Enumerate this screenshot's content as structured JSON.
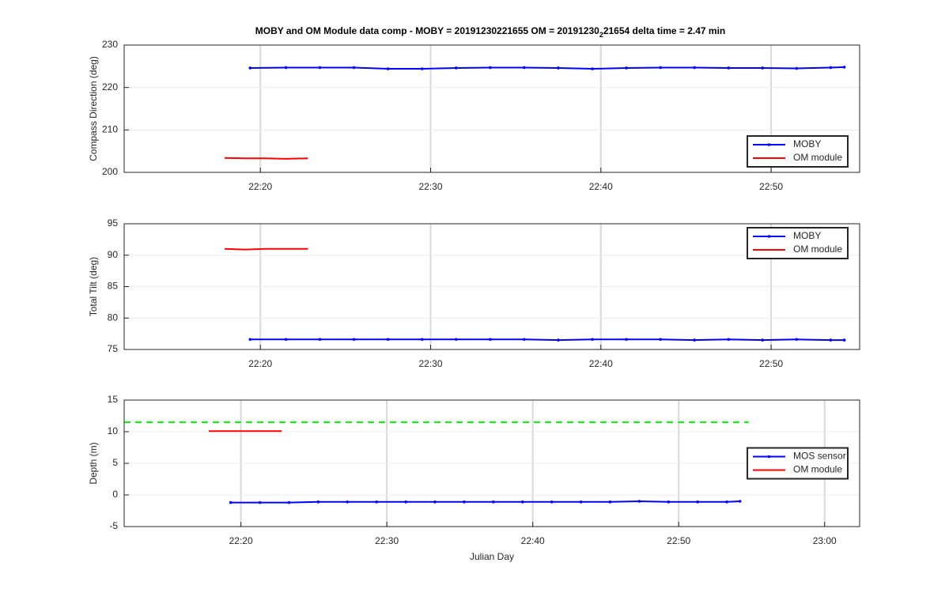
{
  "chart_data": [
    {
      "type": "line",
      "title": [
        "MOBY and OM Module data comp - MOBY = 20191230221655 OM = 20191230",
        "2",
        "21654 delta time = 2.47 min"
      ],
      "ylabel": "Compass Direction (deg)",
      "xlim": [
        1332,
        1375.2
      ],
      "xticks": [
        {
          "value": 1340,
          "label": "22:20"
        },
        {
          "value": 1350,
          "label": "22:30"
        },
        {
          "value": 1360,
          "label": "22:40"
        },
        {
          "value": 1370,
          "label": "22:50"
        }
      ],
      "ylim": [
        200,
        230
      ],
      "yticks": [
        200,
        210,
        220,
        230
      ],
      "grid": true,
      "legend": "lower right",
      "series": [
        {
          "name": "MOBY",
          "color": "#0000ff",
          "marker": true,
          "x": [
            1339.4,
            1341.5,
            1343.5,
            1345.5,
            1347.5,
            1349.5,
            1351.5,
            1353.5,
            1355.5,
            1357.5,
            1359.5,
            1361.5,
            1363.5,
            1365.5,
            1367.5,
            1369.5,
            1371.5,
            1373.5,
            1374.3
          ],
          "values": [
            224.6,
            224.7,
            224.7,
            224.7,
            224.4,
            224.4,
            224.6,
            224.7,
            224.7,
            224.6,
            224.4,
            224.6,
            224.7,
            224.7,
            224.6,
            224.6,
            224.5,
            224.7,
            224.8
          ]
        },
        {
          "name": "OM module",
          "color": "#ff0000",
          "marker": false,
          "x": [
            1337.9,
            1339.1,
            1340.3,
            1341.5,
            1342.8
          ],
          "values": [
            203.4,
            203.3,
            203.3,
            203.2,
            203.3
          ]
        }
      ]
    },
    {
      "type": "line",
      "ylabel": "Total Tilt (deg)",
      "xlim": [
        1332,
        1375.2
      ],
      "xticks": [
        {
          "value": 1340,
          "label": "22:20"
        },
        {
          "value": 1350,
          "label": "22:30"
        },
        {
          "value": 1360,
          "label": "22:40"
        },
        {
          "value": 1370,
          "label": "22:50"
        }
      ],
      "ylim": [
        75,
        95
      ],
      "yticks": [
        75,
        80,
        85,
        90,
        95
      ],
      "grid": true,
      "legend": "upper right",
      "series": [
        {
          "name": "MOBY",
          "color": "#0000ff",
          "marker": true,
          "x": [
            1339.4,
            1341.5,
            1343.5,
            1345.5,
            1347.5,
            1349.5,
            1351.5,
            1353.5,
            1355.5,
            1357.5,
            1359.5,
            1361.5,
            1363.5,
            1365.5,
            1367.5,
            1369.5,
            1371.5,
            1373.5,
            1374.3
          ],
          "values": [
            76.6,
            76.6,
            76.6,
            76.6,
            76.6,
            76.6,
            76.6,
            76.6,
            76.6,
            76.5,
            76.6,
            76.6,
            76.6,
            76.5,
            76.6,
            76.5,
            76.6,
            76.5,
            76.5
          ]
        },
        {
          "name": "OM module",
          "color": "#ff0000",
          "marker": false,
          "x": [
            1337.9,
            1339.1,
            1340.3,
            1341.5,
            1342.8
          ],
          "values": [
            91.0,
            90.9,
            91.0,
            91.0,
            91.0
          ]
        }
      ]
    },
    {
      "type": "line",
      "xlabel": "Julian Day",
      "ylabel": "Depth (m)",
      "xlim": [
        1332,
        1382.4
      ],
      "xticks": [
        {
          "value": 1340,
          "label": "22:20"
        },
        {
          "value": 1350,
          "label": "22:30"
        },
        {
          "value": 1360,
          "label": "22:40"
        },
        {
          "value": 1370,
          "label": "22:50"
        },
        {
          "value": 1380,
          "label": "23:00"
        }
      ],
      "ylim": [
        -5,
        15
      ],
      "yticks": [
        -5,
        0,
        5,
        10,
        15
      ],
      "grid": true,
      "legend": "right",
      "series": [
        {
          "name": "MOS sensor",
          "color": "#0000ff",
          "marker": true,
          "x": [
            1339.3,
            1341.3,
            1343.3,
            1345.3,
            1347.3,
            1349.3,
            1351.3,
            1353.3,
            1355.3,
            1357.3,
            1359.3,
            1361.3,
            1363.3,
            1365.3,
            1367.3,
            1369.3,
            1371.3,
            1373.3,
            1374.2
          ],
          "values": [
            -1.2,
            -1.2,
            -1.2,
            -1.1,
            -1.1,
            -1.1,
            -1.1,
            -1.1,
            -1.1,
            -1.1,
            -1.1,
            -1.1,
            -1.1,
            -1.1,
            -1.0,
            -1.1,
            -1.1,
            -1.1,
            -1.0
          ]
        },
        {
          "name": "OM module",
          "color": "#ff0000",
          "marker": false,
          "x": [
            1337.8,
            1342.8
          ],
          "values": [
            10.1,
            10.1
          ]
        },
        {
          "color": "#00ff00",
          "dash": true,
          "marker": false,
          "x": [
            1332,
            1374.8
          ],
          "values": [
            11.5,
            11.5
          ]
        }
      ]
    }
  ]
}
